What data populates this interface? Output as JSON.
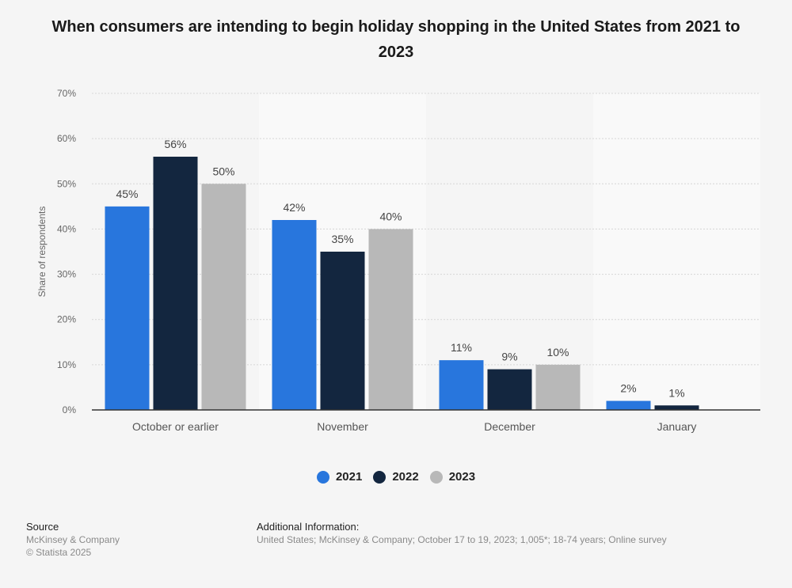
{
  "chart_data": {
    "type": "bar",
    "title": "When consumers are intending to begin holiday shopping in the United States from 2021 to 2023",
    "xlabel": "",
    "ylabel": "Share of respondents",
    "ylim": [
      0,
      70
    ],
    "yticks": [
      "0%",
      "10%",
      "20%",
      "30%",
      "40%",
      "50%",
      "60%",
      "70%"
    ],
    "grid": true,
    "legend_position": "bottom-center",
    "categories": [
      "October or earlier",
      "November",
      "December",
      "January"
    ],
    "series": [
      {
        "name": "2021",
        "color": "#2876dd",
        "values": [
          45,
          42,
          11,
          2
        ],
        "labels": [
          "45%",
          "42%",
          "11%",
          "2%"
        ]
      },
      {
        "name": "2022",
        "color": "#13263f",
        "values": [
          56,
          35,
          9,
          1
        ],
        "labels": [
          "56%",
          "35%",
          "9%",
          "1%"
        ]
      },
      {
        "name": "2023",
        "color": "#b8b8b8",
        "values": [
          50,
          40,
          10,
          null
        ],
        "labels": [
          "50%",
          "40%",
          "10%",
          null
        ]
      }
    ]
  },
  "footer": {
    "source_label": "Source",
    "source_name": "McKinsey & Company",
    "copyright": "© Statista 2025",
    "info_label": "Additional Information:",
    "info_text": "United States; McKinsey & Company; October 17 to 19, 2023; 1,005*; 18-74 years; Online survey"
  }
}
